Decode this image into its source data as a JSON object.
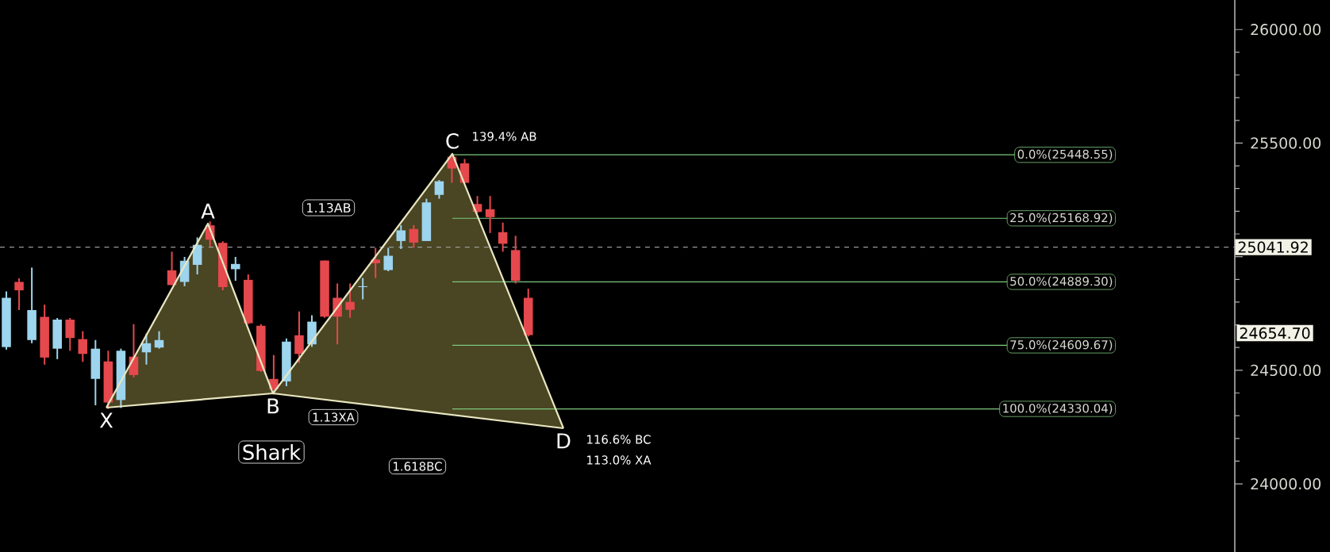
{
  "chart_data": {
    "type": "candlestick",
    "categories": [
      null,
      null,
      null,
      null,
      null,
      null,
      null,
      null,
      null,
      null,
      null,
      null,
      null,
      null,
      null,
      null,
      null,
      null,
      null,
      null,
      null,
      null,
      null,
      null,
      null,
      null,
      null,
      null,
      null,
      null,
      null,
      null,
      null,
      null,
      null,
      null,
      null,
      null,
      null,
      null,
      null,
      null,
      null,
      null,
      null,
      null,
      null,
      null,
      null,
      null,
      null,
      null,
      null,
      null,
      null,
      null,
      null,
      null,
      null,
      null,
      null,
      null,
      null,
      null,
      null,
      null,
      null,
      null,
      null,
      null,
      null,
      null,
      null,
      null,
      null,
      null,
      null,
      null,
      null,
      null,
      null,
      null,
      null,
      null,
      null,
      null,
      null,
      null,
      null,
      null,
      null,
      null,
      null,
      null,
      null,
      null,
      null
    ],
    "ohlc": [
      [
        24602,
        24847,
        24591,
        24819
      ],
      [
        24889,
        24905,
        24765,
        24852
      ],
      [
        24633,
        24952,
        24619,
        24765
      ],
      [
        24735,
        24789,
        24525,
        24556
      ],
      [
        24595,
        24730,
        24549,
        24723
      ],
      [
        24723,
        24730,
        24586,
        24642
      ],
      [
        24637,
        24672,
        24537,
        24572
      ],
      [
        24462,
        24633,
        24346,
        24595
      ],
      [
        24539,
        24586,
        24330.04,
        24358
      ],
      [
        24369,
        24595,
        24334,
        24586
      ],
      [
        24560,
        24703,
        24469,
        24479
      ],
      [
        24579,
        24661,
        24525,
        24619
      ],
      [
        24600,
        24672,
        24595,
        24633
      ],
      [
        24940,
        25022,
        24875,
        24875
      ],
      [
        24889,
        24999,
        24870,
        24982
      ],
      [
        24964,
        25085,
        24922,
        25052
      ],
      [
        25138,
        25155,
        25045,
        25075
      ],
      [
        25061,
        25068,
        24852,
        24866
      ],
      [
        24945,
        24999,
        24894,
        24968
      ],
      [
        24898,
        24922,
        24703,
        24707
      ],
      [
        24696,
        24703,
        24493,
        24497
      ],
      [
        24462,
        24567,
        24393,
        24416
      ],
      [
        24451,
        24640,
        24430,
        24626
      ],
      [
        24654,
        24759,
        24533,
        24572
      ],
      [
        24614,
        24742,
        24603,
        24714
      ],
      [
        24983,
        24983,
        24731,
        24736
      ],
      [
        24819,
        24882,
        24614,
        24736
      ],
      [
        24801,
        24882,
        24731,
        24766
      ],
      [
        24866,
        24906,
        24812,
        24870
      ],
      [
        24987,
        25039,
        24906,
        24971
      ],
      [
        24941,
        25039,
        24936,
        25004
      ],
      [
        25069,
        25139,
        25034,
        25116
      ],
      [
        25122,
        25139,
        25039,
        25062
      ],
      [
        25069,
        25255,
        25069,
        25239
      ],
      [
        25272,
        25337,
        25255,
        25332
      ],
      [
        25440,
        25448.55,
        25325,
        25388
      ],
      [
        25411,
        25430,
        25325,
        25325
      ],
      [
        25232,
        25267,
        25192,
        25197
      ],
      [
        25209,
        25267,
        25104,
        25174
      ],
      [
        25108,
        25150,
        25022,
        25057
      ],
      [
        25029,
        25092,
        24882,
        24894
      ],
      [
        24819,
        24859,
        24649,
        24654.7
      ],
      null,
      null,
      null,
      null,
      null,
      null,
      null,
      null,
      null,
      null,
      null,
      null,
      null,
      null,
      null,
      null,
      null,
      null,
      null,
      null,
      null,
      null,
      null,
      null,
      null,
      null,
      null,
      null,
      null,
      null,
      null,
      null,
      null,
      null,
      null,
      null,
      null,
      null,
      null,
      null,
      null,
      null,
      null,
      null,
      null,
      null,
      null,
      null,
      null,
      null,
      null,
      null,
      null,
      null,
      null
    ],
    "colors": [
      "#9dd4ee",
      "#e5484d",
      "#9dd4ee",
      "#e5484d",
      "#9dd4ee",
      "#e5484d",
      "#e5484d",
      "#9dd4ee",
      "#e5484d",
      "#9dd4ee",
      "#e5484d",
      "#9dd4ee",
      "#9dd4ee",
      "#e5484d",
      "#9dd4ee",
      "#9dd4ee",
      "#e5484d",
      "#e5484d",
      "#9dd4ee",
      "#e5484d",
      "#e5484d",
      "#e5484d",
      "#9dd4ee",
      "#e5484d",
      "#9dd4ee",
      "#e5484d",
      "#e5484d",
      "#e5484d",
      "#9dd4ee",
      "#e5484d",
      "#9dd4ee",
      "#9dd4ee",
      "#e5484d",
      "#9dd4ee",
      "#9dd4ee",
      "#e5484d",
      "#e5484d",
      "#e5484d",
      "#e5484d",
      "#e5484d",
      "#e5484d",
      "#e5484d",
      null,
      null,
      null,
      null,
      null,
      null,
      null,
      null,
      null,
      null,
      null,
      null,
      null,
      null,
      null,
      null,
      null,
      null,
      null,
      null,
      null,
      null,
      null,
      null,
      null,
      null,
      null,
      null,
      null,
      null,
      null,
      null,
      null,
      null,
      null,
      null,
      null,
      null,
      null,
      null,
      null,
      null,
      null,
      null,
      null,
      null,
      null,
      null,
      null,
      null,
      null,
      null,
      null,
      null,
      null
    ],
    "ylim": [
      23700,
      26130
    ],
    "yticks": [
      {
        "value": 24000,
        "label": "24000.00"
      },
      {
        "value": 24500,
        "label": "24500.00"
      },
      {
        "value": 25000,
        "label": null
      },
      {
        "value": 25500,
        "label": "25500.00"
      },
      {
        "value": 26000,
        "label": "26000.00"
      }
    ],
    "tick_labels": "y",
    "ref_lines": [
      {
        "axis": "y",
        "value": 25448.55,
        "label": "0.0%(25448.55)",
        "color": "#7ec87e"
      },
      {
        "axis": "y",
        "value": 25168.92,
        "label": "25.0%(25168.92)",
        "color": "#7ec87e"
      },
      {
        "axis": "y",
        "value": 24889.3,
        "label": "50.0%(24889.30)",
        "color": "#7ec87e"
      },
      {
        "axis": "y",
        "value": 24609.67,
        "label": "75.0%(24609.67)",
        "color": "#7ec87e"
      },
      {
        "axis": "y",
        "value": 24330.04,
        "label": "100.0%(24330.04)",
        "color": "#7ec87e"
      },
      {
        "axis": "y",
        "value": 25041.92,
        "label": "25041.92",
        "line_style": "dashed"
      }
    ],
    "annotations": [
      "X",
      "A",
      "B",
      "C",
      "D",
      "139.4% AB",
      "1.13AB",
      "Shark",
      "1.13XA",
      "1.618BC",
      "116.6% BC",
      "113.0% XA",
      "24654.70"
    ]
  }
}
